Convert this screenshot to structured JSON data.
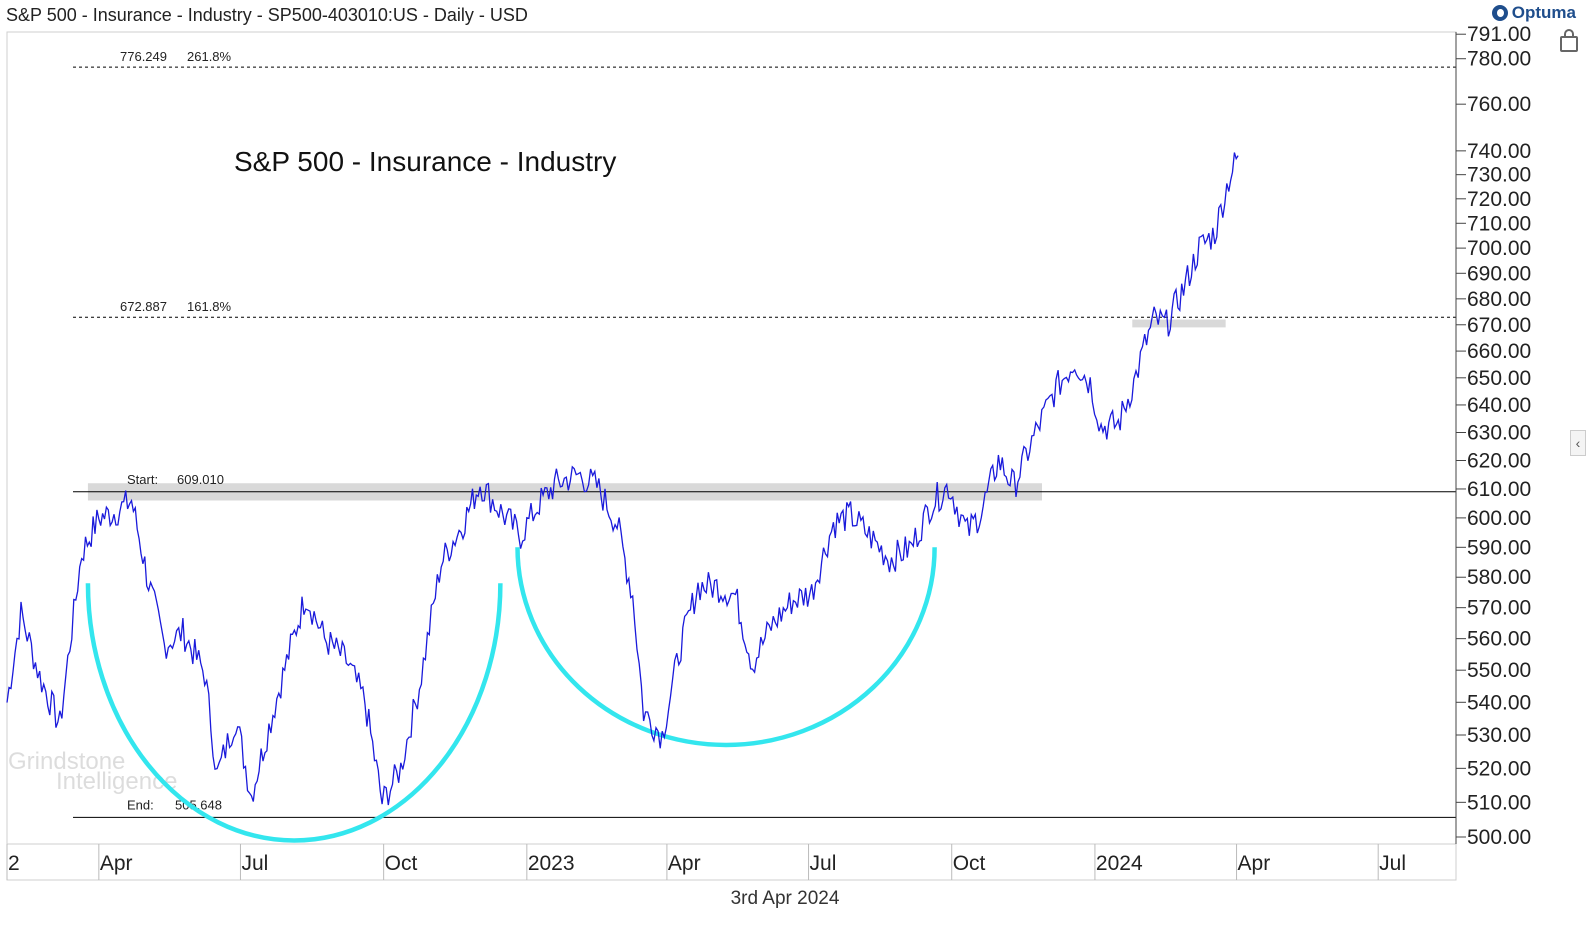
{
  "header": {
    "title": "S&P 500 - Insurance - Industry - SP500-403010:US - Daily - USD"
  },
  "logo": {
    "text": "Optuma",
    "icon": "optuma-logo-icon"
  },
  "footer": {
    "date": "3rd Apr 2024"
  },
  "watermark": {
    "line1": "Grindstone",
    "line2": "Intelligence"
  },
  "colors": {
    "price": "#1a1adb",
    "arc": "#33e6ee",
    "zone": "#d9d9d9",
    "line": "#000000"
  },
  "chart_data": {
    "type": "line",
    "title": "S&P 500 - Insurance - Industry",
    "xlabel": "",
    "ylabel": "",
    "y_scale": "log",
    "ylim": [
      498,
      792
    ],
    "x_range": [
      "2022-02-01",
      "2024-08-20"
    ],
    "x_tick_labels": [
      "2",
      "Apr",
      "Jul",
      "Oct",
      "2023",
      "Apr",
      "Jul",
      "Oct",
      "2024",
      "Apr",
      "Jul"
    ],
    "x_tick_dates": [
      "2022-02-01",
      "2022-04-01",
      "2022-07-01",
      "2022-10-01",
      "2023-01-01",
      "2023-04-01",
      "2023-07-01",
      "2023-10-01",
      "2024-01-01",
      "2024-04-01",
      "2024-07-01"
    ],
    "y_ticks": [
      500,
      510,
      520,
      530,
      540,
      550,
      560,
      570,
      580,
      590,
      600,
      610,
      620,
      630,
      640,
      650,
      660,
      670,
      680,
      690,
      700,
      710,
      720,
      730,
      740,
      760,
      780,
      791
    ],
    "y_tick_labels": [
      "500.00",
      "510.00",
      "520.00",
      "530.00",
      "540.00",
      "550.00",
      "560.00",
      "570.00",
      "580.00",
      "590.00",
      "600.00",
      "610.00",
      "620.00",
      "630.00",
      "640.00",
      "650.00",
      "660.00",
      "670.00",
      "680.00",
      "690.00",
      "700.00",
      "710.00",
      "720.00",
      "730.00",
      "740.00",
      "760.00",
      "780.00",
      "791.00"
    ],
    "series": [
      {
        "points": [
          [
            "2022-02-01",
            540
          ],
          [
            "2022-02-10",
            568
          ],
          [
            "2022-02-22",
            548
          ],
          [
            "2022-03-07",
            533
          ],
          [
            "2022-03-21",
            588
          ],
          [
            "2022-04-01",
            600
          ],
          [
            "2022-04-12",
            602
          ],
          [
            "2022-04-22",
            606
          ],
          [
            "2022-05-03",
            578
          ],
          [
            "2022-05-13",
            558
          ],
          [
            "2022-05-25",
            562
          ],
          [
            "2022-06-08",
            549
          ],
          [
            "2022-06-16",
            518
          ],
          [
            "2022-06-28",
            535
          ],
          [
            "2022-07-08",
            512
          ],
          [
            "2022-07-18",
            530
          ],
          [
            "2022-08-01",
            555
          ],
          [
            "2022-08-12",
            574
          ],
          [
            "2022-08-24",
            560
          ],
          [
            "2022-09-07",
            553
          ],
          [
            "2022-09-19",
            540
          ],
          [
            "2022-09-30",
            510
          ],
          [
            "2022-10-12",
            520
          ],
          [
            "2022-10-24",
            545
          ],
          [
            "2022-11-07",
            585
          ],
          [
            "2022-11-21",
            598
          ],
          [
            "2022-12-02",
            612
          ],
          [
            "2022-12-14",
            603
          ],
          [
            "2022-12-28",
            594
          ],
          [
            "2023-01-09",
            605
          ],
          [
            "2023-01-20",
            612
          ],
          [
            "2023-02-03",
            615
          ],
          [
            "2023-02-15",
            611
          ],
          [
            "2023-02-28",
            598
          ],
          [
            "2023-03-10",
            574
          ],
          [
            "2023-03-17",
            537
          ],
          [
            "2023-03-29",
            530
          ],
          [
            "2023-04-10",
            558
          ],
          [
            "2023-04-21",
            577
          ],
          [
            "2023-05-03",
            577
          ],
          [
            "2023-05-15",
            574
          ],
          [
            "2023-05-26",
            552
          ],
          [
            "2023-06-07",
            564
          ],
          [
            "2023-06-20",
            572
          ],
          [
            "2023-07-03",
            575
          ],
          [
            "2023-07-17",
            598
          ],
          [
            "2023-07-28",
            601
          ],
          [
            "2023-08-09",
            594
          ],
          [
            "2023-08-22",
            586
          ],
          [
            "2023-09-05",
            590
          ],
          [
            "2023-09-18",
            605
          ],
          [
            "2023-09-29",
            611
          ],
          [
            "2023-10-11",
            595
          ],
          [
            "2023-10-20",
            602
          ],
          [
            "2023-10-31",
            620
          ],
          [
            "2023-11-10",
            611
          ],
          [
            "2023-11-24",
            630
          ],
          [
            "2023-12-07",
            646
          ],
          [
            "2023-12-19",
            656
          ],
          [
            "2023-12-29",
            648
          ],
          [
            "2024-01-05",
            632
          ],
          [
            "2024-01-16",
            633
          ],
          [
            "2024-01-26",
            648
          ],
          [
            "2024-02-02",
            662
          ],
          [
            "2024-02-08",
            672
          ],
          [
            "2024-02-16",
            670
          ],
          [
            "2024-02-27",
            684
          ],
          [
            "2024-03-08",
            700
          ],
          [
            "2024-03-18",
            706
          ],
          [
            "2024-03-27",
            728
          ],
          [
            "2024-04-02",
            738
          ]
        ]
      }
    ],
    "horizontal_lines": [
      {
        "value": 776.249,
        "style": "dashed",
        "label": "776.249",
        "pct": "261.8%"
      },
      {
        "value": 672.887,
        "style": "dashed",
        "label": "672.887",
        "pct": "161.8%"
      },
      {
        "value": 609.01,
        "style": "solid",
        "label_prefix": "Start:",
        "label": "609.010"
      },
      {
        "value": 505.648,
        "style": "solid",
        "label_prefix": "End:",
        "label": "505.648"
      }
    ],
    "zones": [
      {
        "from_date": "2022-03-25",
        "to_date": "2023-11-28",
        "y_low": 606,
        "y_high": 612
      },
      {
        "from_date": "2024-01-25",
        "to_date": "2024-03-25",
        "y_low": 669,
        "y_high": 672
      }
    ],
    "arcs": [
      {
        "from_date": "2022-03-25",
        "to_date": "2022-12-15",
        "top": 578,
        "bottom": 499
      },
      {
        "from_date": "2022-12-26",
        "to_date": "2023-09-20",
        "top": 590,
        "bottom": 527
      }
    ]
  }
}
